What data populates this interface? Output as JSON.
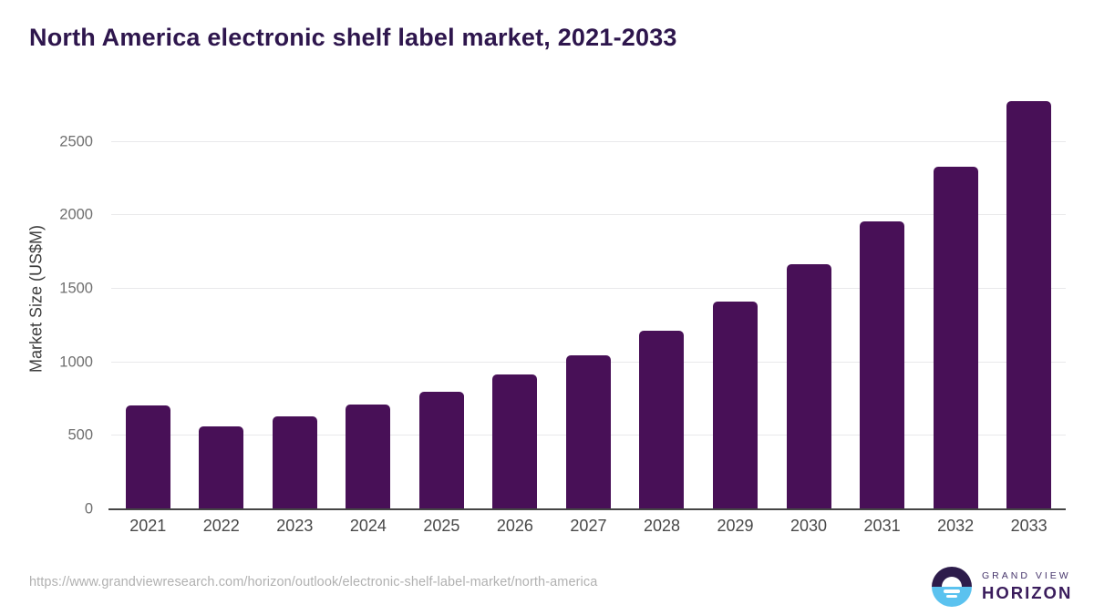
{
  "title": "North America electronic shelf label market, 2021-2033",
  "chart_data": {
    "type": "bar",
    "title": "North America electronic shelf label market, 2021-2033",
    "categories": [
      "2021",
      "2022",
      "2023",
      "2024",
      "2025",
      "2026",
      "2027",
      "2028",
      "2029",
      "2030",
      "2031",
      "2032",
      "2033"
    ],
    "values": [
      705,
      565,
      630,
      710,
      800,
      915,
      1045,
      1215,
      1415,
      1665,
      1960,
      2330,
      2775
    ],
    "xlabel": "",
    "ylabel": "Market Size (US$M)",
    "ylim": [
      0,
      2865
    ],
    "yticks": [
      0,
      500,
      1000,
      1500,
      2000,
      2500
    ],
    "grid": true,
    "legend": "none",
    "bar_color": "#481057"
  },
  "footer": {
    "source_url": "https://www.grandviewresearch.com/horizon/outlook/electronic-shelf-label-market/north-america",
    "logo": {
      "line1": "GRAND VIEW",
      "line2": "HORIZON"
    }
  },
  "colors": {
    "bar": "#481057",
    "title_text": "#2e164d",
    "gridline": "#e9e9eb",
    "axis_line": "#454545",
    "y_tick_text": "#6f6f6f",
    "x_tick_text": "#484848",
    "url_text": "#b1b1b1",
    "logo_navy": "#2d1c4b",
    "logo_blue": "#5bc2ef"
  }
}
